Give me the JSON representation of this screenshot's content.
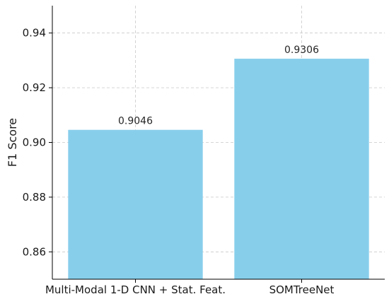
{
  "chart_data": {
    "type": "bar",
    "categories": [
      "Multi-Modal 1-D CNN + Stat. Feat.",
      "SOMTreeNet"
    ],
    "values": [
      0.9046,
      0.9306
    ],
    "value_labels": [
      "0.9046",
      "0.9306"
    ],
    "title": "",
    "xlabel": "",
    "ylabel": "F1 Score",
    "ylim": [
      0.85,
      0.95
    ],
    "yticks": [
      0.86,
      0.88,
      0.9,
      0.92,
      0.94
    ],
    "ytick_labels": [
      "0.86",
      "0.88",
      "0.90",
      "0.92",
      "0.94"
    ],
    "grid": true,
    "legend": "none",
    "bar_color": "#87CEEB"
  }
}
